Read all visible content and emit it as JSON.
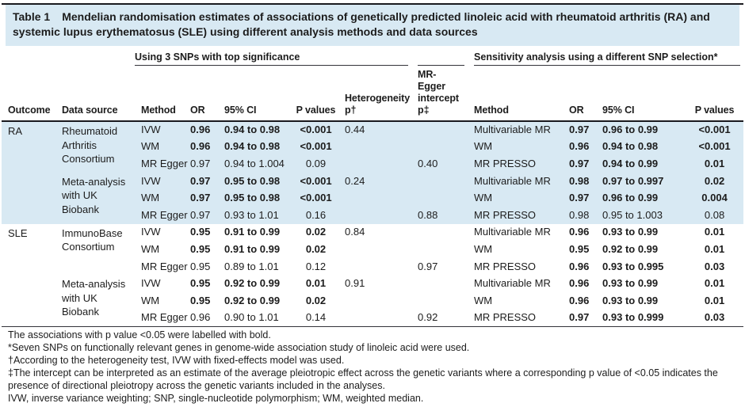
{
  "colors": {
    "band_blue": "#d8e9f3",
    "caption_bg": "#d8e9f3",
    "rule_dark": "#1a1a1f",
    "rule_mid": "#33333a",
    "rule_bottom": "#949494",
    "text": "#1c1c1c"
  },
  "table": {
    "label": "Table 1",
    "caption": "Mendelian randomisation estimates of associations of genetically predicted linoleic acid with rheumatoid arthritis (RA) and systemic lupus erythematosus (SLE) using different analysis methods and data sources",
    "header_groups": [
      {
        "span": 2,
        "label": "",
        "rule": false
      },
      {
        "span": 5,
        "label": "Using 3 SNPs with top significance",
        "rule": true
      },
      {
        "span": 1,
        "label": "",
        "rule": true
      },
      {
        "span": 4,
        "label": "Sensitivity analysis using a different SNP selection*",
        "rule": true
      }
    ],
    "columns": [
      "Outcome",
      "Data source",
      "Method",
      "OR",
      "95% CI",
      "P values",
      "Heterogeneity p†",
      "MR-Egger intercept p‡",
      "Method",
      "OR",
      "95% CI",
      "P values"
    ],
    "row_groups": [
      {
        "outcome": "RA",
        "band": "blue",
        "sources": [
          {
            "data_source": "Rheumatoid Arthritis Consortium",
            "rows": [
              {
                "method": "IVW",
                "or": "0.96",
                "ci": "0.94 to 0.98",
                "p": "<0.001",
                "bold": true,
                "het": "0.44",
                "egger": "",
                "s_method": "Multivariable MR",
                "s_or": "0.97",
                "s_ci": "0.96 to 0.99",
                "s_p": "<0.001",
                "s_bold": true
              },
              {
                "method": "WM",
                "or": "0.96",
                "ci": "0.94 to 0.98",
                "p": "<0.001",
                "bold": true,
                "het": "",
                "egger": "",
                "s_method": "WM",
                "s_or": "0.96",
                "s_ci": "0.94 to 0.98",
                "s_p": "<0.001",
                "s_bold": true
              },
              {
                "method": "MR Egger",
                "or": "0.97",
                "ci": "0.94 to 1.004",
                "p": "0.09",
                "bold": false,
                "het": "",
                "egger": "0.40",
                "s_method": "MR PRESSO",
                "s_or": "0.97",
                "s_ci": "0.94 to 0.99",
                "s_p": "0.01",
                "s_bold": true
              }
            ]
          },
          {
            "data_source": "Meta-analysis with UK Biobank",
            "rows": [
              {
                "method": "IVW",
                "or": "0.97",
                "ci": "0.95 to 0.98",
                "p": "<0.001",
                "bold": true,
                "het": "0.24",
                "egger": "",
                "s_method": "Multivariable MR",
                "s_or": "0.98",
                "s_ci": "0.97 to 0.997",
                "s_p": "0.02",
                "s_bold": true
              },
              {
                "method": "WM",
                "or": "0.97",
                "ci": "0.95 to 0.98",
                "p": "<0.001",
                "bold": true,
                "het": "",
                "egger": "",
                "s_method": "WM",
                "s_or": "0.97",
                "s_ci": "0.96 to 0.99",
                "s_p": "0.004",
                "s_bold": true
              },
              {
                "method": "MR Egger",
                "or": "0.97",
                "ci": "0.93 to 1.01",
                "p": "0.16",
                "bold": false,
                "het": "",
                "egger": "0.88",
                "s_method": "MR PRESSO",
                "s_or": "0.98",
                "s_ci": "0.95 to 1.003",
                "s_p": "0.08",
                "s_bold": false
              }
            ]
          }
        ]
      },
      {
        "outcome": "SLE",
        "band": "white",
        "sources": [
          {
            "data_source": "ImmunoBase Consortium",
            "rows": [
              {
                "method": "IVW",
                "or": "0.95",
                "ci": "0.91 to 0.99",
                "p": "0.02",
                "bold": true,
                "het": "0.84",
                "egger": "",
                "s_method": "Multivariable MR",
                "s_or": "0.96",
                "s_ci": "0.93 to 0.99",
                "s_p": "0.01",
                "s_bold": true
              },
              {
                "method": "WM",
                "or": "0.95",
                "ci": "0.91 to 0.99",
                "p": "0.02",
                "bold": true,
                "het": "",
                "egger": "",
                "s_method": "WM",
                "s_or": "0.95",
                "s_ci": "0.92 to 0.99",
                "s_p": "0.01",
                "s_bold": true
              },
              {
                "method": "MR Egger",
                "or": "0.95",
                "ci": "0.89 to 1.01",
                "p": "0.12",
                "bold": false,
                "het": "",
                "egger": "0.97",
                "s_method": "MR PRESSO",
                "s_or": "0.96",
                "s_ci": "0.93 to 0.995",
                "s_p": "0.03",
                "s_bold": true
              }
            ]
          },
          {
            "data_source": "Meta-analysis with UK Biobank",
            "rows": [
              {
                "method": "IVW",
                "or": "0.95",
                "ci": "0.92 to 0.99",
                "p": "0.01",
                "bold": true,
                "het": "0.91",
                "egger": "",
                "s_method": "Multivariable MR",
                "s_or": "0.96",
                "s_ci": "0.93 to 0.99",
                "s_p": "0.01",
                "s_bold": true
              },
              {
                "method": "WM",
                "or": "0.95",
                "ci": "0.92 to 0.99",
                "p": "0.02",
                "bold": true,
                "het": "",
                "egger": "",
                "s_method": "WM",
                "s_or": "0.96",
                "s_ci": "0.93 to 0.99",
                "s_p": "0.01",
                "s_bold": true
              },
              {
                "method": "MR Egger",
                "or": "0.96",
                "ci": "0.90 to 1.01",
                "p": "0.14",
                "bold": false,
                "het": "",
                "egger": "0.92",
                "s_method": "MR PRESSO",
                "s_or": "0.97",
                "s_ci": "0.93 to 0.999",
                "s_p": "0.03",
                "s_bold": true
              }
            ]
          }
        ]
      }
    ],
    "footnotes": [
      "The associations with p value <0.05 were labelled with bold.",
      "*Seven SNPs on functionally relevant genes in genome-wide association study of linoleic acid were used.",
      "†According to the heterogeneity test, IVW with fixed-effects model was used.",
      "‡The intercept can be interpreted as an estimate of the average pleiotropic effect across the genetic variants where a corresponding p value of <0.05 indicates the presence of directional pleiotropy across the genetic variants included in the analyses.",
      "IVW, inverse variance weighting; SNP, single-nucleotide polymorphism; WM, weighted median."
    ]
  }
}
